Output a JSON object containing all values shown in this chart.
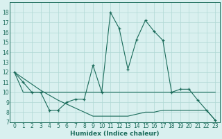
{
  "xlabel": "Humidex (Indice chaleur)",
  "x": [
    0,
    1,
    2,
    3,
    4,
    5,
    6,
    7,
    8,
    9,
    10,
    11,
    12,
    13,
    14,
    15,
    16,
    17,
    18,
    19,
    20,
    21,
    22,
    23
  ],
  "curve_main": [
    12,
    11,
    10,
    10,
    8.2,
    8.2,
    9,
    9.3,
    9.3,
    12.7,
    10,
    18,
    16.4,
    12.3,
    15.3,
    17.2,
    16.1,
    15.2,
    10,
    10.3,
    10.3,
    9.2,
    8.2,
    7.2
  ],
  "curve_flat": [
    12,
    10,
    10,
    10,
    10,
    10,
    10,
    10,
    10,
    10,
    10,
    10,
    10,
    10,
    10,
    10,
    10,
    10,
    10,
    10,
    10,
    10,
    10,
    10
  ],
  "curve_diag": [
    12,
    11.4,
    10.8,
    10.2,
    9.7,
    9.2,
    8.8,
    8.4,
    8.0,
    7.6,
    7.6,
    7.6,
    7.6,
    7.6,
    7.8,
    8.0,
    8.0,
    8.2,
    8.2,
    8.2,
    8.2,
    8.2,
    8.2,
    7.2
  ],
  "line_color": "#1a6b5a",
  "bg_color": "#d9f0ef",
  "grid_color": "#b0d8d5",
  "ylim": [
    7,
    19
  ],
  "xlim": [
    -0.5,
    23.5
  ],
  "yticks": [
    7,
    8,
    9,
    10,
    11,
    12,
    13,
    14,
    15,
    16,
    17,
    18
  ],
  "xticks": [
    0,
    1,
    2,
    3,
    4,
    5,
    6,
    7,
    8,
    9,
    10,
    11,
    12,
    13,
    14,
    15,
    16,
    17,
    18,
    19,
    20,
    21,
    22,
    23
  ],
  "tick_fontsize": 5.5,
  "xlabel_fontsize": 6.5
}
